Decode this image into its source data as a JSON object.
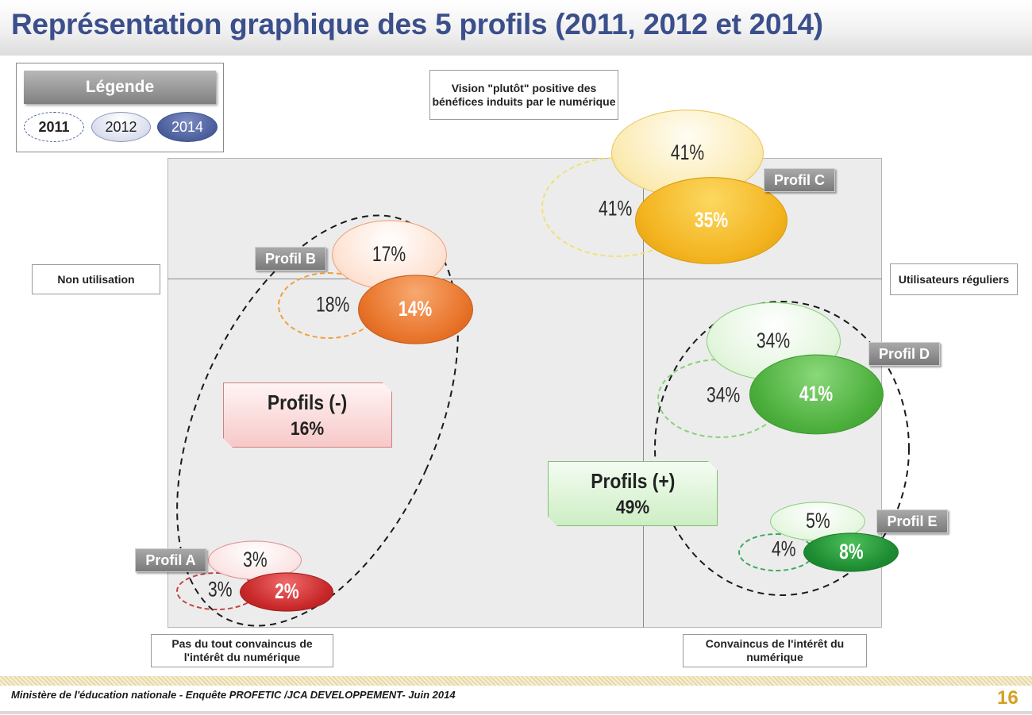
{
  "title": "Représentation graphique des 5 profils (2011, 2012 et 2014)",
  "legend": {
    "title": "Légende",
    "y2011": "2011",
    "y2012": "2012",
    "y2014": "2014"
  },
  "axes": {
    "top": "Vision \"plutôt\" positive des bénéfices induits par le numérique",
    "left": "Non utilisation",
    "right": "Utilisateurs réguliers",
    "bottom_left": "Pas du tout convaincus de l'intérêt du numérique",
    "bottom_right": "Convaincus de l'intérêt du numérique"
  },
  "profiles": {
    "A": {
      "label": "Profil A",
      "v2011": "3%",
      "v2012": "3%",
      "v2014": "2%"
    },
    "B": {
      "label": "Profil B",
      "v2011": "18%",
      "v2012": "17%",
      "v2014": "14%"
    },
    "C": {
      "label": "Profil C",
      "v2011": "41%",
      "v2012": "41%",
      "v2014": "35%"
    },
    "D": {
      "label": "Profil D",
      "v2011": "34%",
      "v2012": "34%",
      "v2014": "41%"
    },
    "E": {
      "label": "Profil E",
      "v2011": "4%",
      "v2012": "5%",
      "v2014": "8%"
    }
  },
  "groups": {
    "negative": {
      "label": "Profils (-)",
      "value": "16%"
    },
    "positive": {
      "label": "Profils (+)",
      "value": "49%"
    }
  },
  "colors": {
    "title": "#3b4f8c",
    "profile_a": "#c8282a",
    "profile_b": "#e8742a",
    "profile_c": "#f0b020",
    "profile_d": "#4caf3c",
    "profile_e": "#1e8c32",
    "page_number": "#d4a020"
  },
  "footer": {
    "source": "Ministère de l'éducation nationale - Enquête PROFETIC /JCA DEVELOPPEMENT- Juin 2014",
    "page": "16"
  }
}
